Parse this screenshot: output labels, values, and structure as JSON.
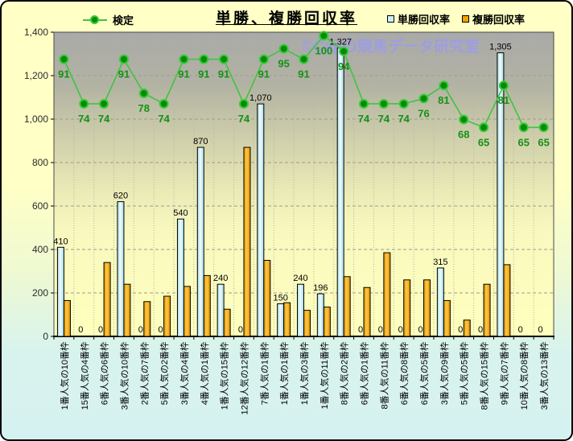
{
  "title": "単勝、複勝回収率",
  "watermark": "©Capの競馬データ研究室",
  "legend": {
    "line_label": "検定",
    "tansho_label": "単勝回収率",
    "fukusho_label": "複勝回収率"
  },
  "colors": {
    "tansho": "#cdeef6",
    "fukusho": "#f4a300",
    "line": "#3fc43f",
    "marker_fill": "#0a8a0a",
    "marker_ring": "#37cb37",
    "line_label": "#159215",
    "bar_label": "#000000",
    "watermark": "#9c9cec"
  },
  "chart_data": {
    "type": "combo",
    "title": "単勝、複勝回収率",
    "categories": [
      "1番人気の10番枠",
      "15番人気の4番枠",
      "6番人気の6番枠",
      "3番人気の10番枠",
      "2番人気の7番枠",
      "5番人気の2番枠",
      "3番人気の4番枠",
      "4番人気の1番枠",
      "1番人気の15番枠",
      "12番人気の12番枠",
      "7番人気の1番枠",
      "1番人気の1番枠",
      "1番人気の3番枠",
      "1番人気の11番枠",
      "8番人気の2番枠",
      "6番人気の1番枠",
      "8番人気の11番枠",
      "6番人気の8番枠",
      "6番人気の5番枠",
      "3番人気の9番枠",
      "5番人気の5番枠",
      "8番人気の15番枠",
      "9番人気の7番枠",
      "10番人気の8番枠",
      "3番人気の13番枠"
    ],
    "series": [
      {
        "name": "単勝回収率",
        "type": "bar",
        "values": [
          410,
          0,
          0,
          620,
          0,
          0,
          540,
          870,
          240,
          0,
          1070,
          150,
          240,
          196,
          1327,
          0,
          0,
          0,
          0,
          315,
          0,
          0,
          1305,
          0,
          0
        ],
        "data_labels": true
      },
      {
        "name": "複勝回収率",
        "type": "bar",
        "values": [
          165,
          0,
          340,
          240,
          160,
          185,
          230,
          280,
          125,
          870,
          350,
          155,
          120,
          135,
          275,
          225,
          385,
          260,
          260,
          165,
          75,
          240,
          330,
          0,
          0
        ],
        "data_labels": false
      },
      {
        "name": "検定",
        "type": "line",
        "values": [
          91,
          74,
          74,
          91,
          78,
          74,
          91,
          91,
          91,
          74,
          91,
          95,
          91,
          100,
          94,
          74,
          74,
          74,
          76,
          81,
          68,
          65,
          81,
          65,
          65
        ],
        "data_labels": true
      }
    ],
    "ylim": [
      0,
      1400
    ],
    "yticks": [
      "0",
      "200",
      "400",
      "600",
      "800",
      "1,000",
      "1,200",
      "1,400"
    ],
    "grid": true,
    "legend_position": "top"
  }
}
